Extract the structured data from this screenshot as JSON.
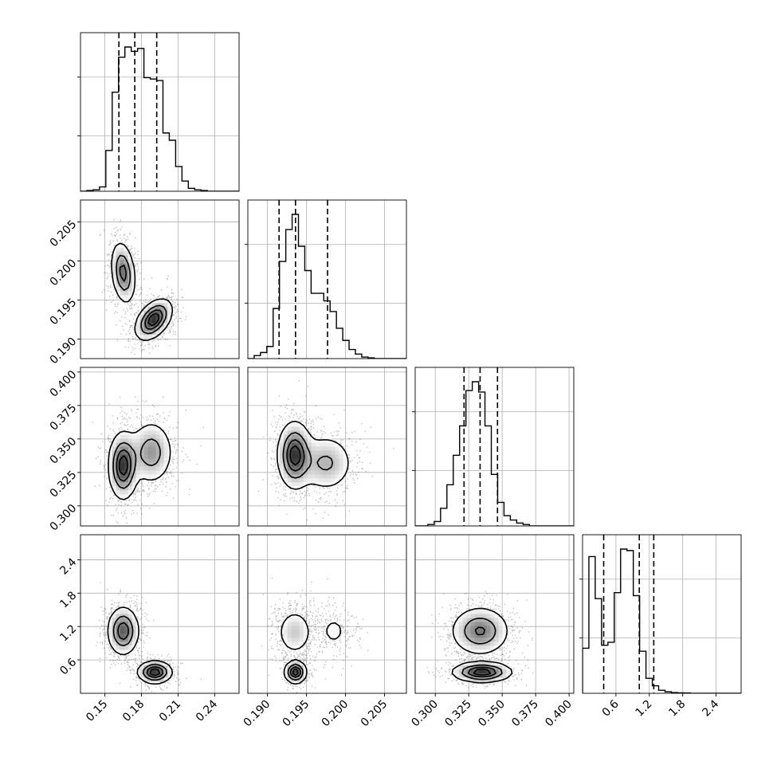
{
  "chart_data": {
    "type": "corner",
    "parameters": [
      {
        "ticks": [
          0.15,
          0.18,
          0.21,
          0.24
        ],
        "tick_labels": [
          "0.15",
          "0.18",
          "0.21",
          "0.24"
        ],
        "range": [
          0.13,
          0.26
        ]
      },
      {
        "ticks": [
          0.19,
          0.195,
          0.2,
          0.205
        ],
        "tick_labels": [
          "0.190",
          "0.195",
          "0.200",
          "0.205"
        ],
        "range": [
          0.1875,
          0.2078
        ]
      },
      {
        "ticks": [
          0.3,
          0.325,
          0.35,
          0.375,
          0.4
        ],
        "tick_labels": [
          "0.300",
          "0.325",
          "0.350",
          "0.375",
          "0.400"
        ],
        "range": [
          0.285,
          0.4035
        ]
      },
      {
        "ticks": [
          0.6,
          1.2,
          1.8,
          2.4
        ],
        "tick_labels": [
          "0.6",
          "1.2",
          "1.8",
          "2.4"
        ],
        "range": [
          0.0,
          2.85
        ]
      }
    ],
    "quantiles": [
      [
        0.1615,
        0.1745,
        0.1925
      ],
      [
        0.1915,
        0.1936,
        0.1977
      ],
      [
        0.3215,
        0.3335,
        0.3465
      ],
      [
        0.38,
        1.02,
        1.28
      ]
    ],
    "histograms": [
      {
        "edges_start": 0.13,
        "bin_width": 0.0052,
        "heights": [
          0,
          0.5,
          1,
          3,
          28,
          68,
          92,
          99,
          96,
          98,
          78,
          77,
          76,
          40,
          35,
          17,
          7,
          2,
          1,
          0.5,
          0,
          0,
          0,
          0,
          0
        ]
      },
      {
        "edges_start": 0.1875,
        "bin_width": 0.00081,
        "heights": [
          0,
          2,
          4,
          8,
          33,
          64,
          85,
          95,
          74,
          58,
          43,
          43,
          38,
          31,
          20,
          12,
          6,
          3,
          1,
          0.5,
          0,
          0,
          0,
          0,
          0
        ]
      },
      {
        "edges_start": 0.285,
        "bin_width": 0.00474,
        "heights": [
          0,
          0,
          1,
          3,
          12,
          28,
          48,
          68,
          92,
          98,
          91,
          68,
          35,
          16,
          7,
          4,
          2,
          1,
          0,
          0,
          0,
          0,
          0,
          0,
          0
        ]
      },
      {
        "edges_start": 0.0,
        "bin_width": 0.114,
        "heights": [
          30,
          91,
          63,
          32,
          34,
          67,
          96,
          95,
          65,
          28,
          10,
          5,
          2,
          1,
          0.5,
          0.3,
          0.2,
          0,
          0,
          0,
          0,
          0,
          0,
          0,
          0
        ]
      }
    ],
    "modes": [
      [
        {
          "mean": [
            0.165,
            0.1985
          ],
          "sd": [
            0.005,
            0.002
          ],
          "rho": -0.25,
          "weight": 0.45
        },
        {
          "mean": [
            0.19,
            0.1925
          ],
          "sd": [
            0.0075,
            0.0013
          ],
          "rho": 0.45,
          "weight": 0.55
        }
      ],
      [
        {
          "mean": [
            0.165,
            0.33
          ],
          "sd": [
            0.006,
            0.0125
          ],
          "rho": 0.0,
          "weight": 0.55
        },
        {
          "mean": [
            0.188,
            0.34
          ],
          "sd": [
            0.009,
            0.012
          ],
          "rho": 0.0,
          "weight": 0.45
        }
      ],
      [
        {
          "mean": [
            0.1935,
            0.338
          ],
          "sd": [
            0.0011,
            0.0125
          ],
          "rho": 0.0,
          "weight": 0.6
        },
        {
          "mean": [
            0.1975,
            0.332
          ],
          "sd": [
            0.0018,
            0.011
          ],
          "rho": 0.0,
          "weight": 0.4
        }
      ],
      [
        {
          "mean": [
            0.165,
            1.12
          ],
          "sd": [
            0.0065,
            0.22
          ],
          "rho": 0.0,
          "weight": 0.62
        },
        {
          "mean": [
            0.191,
            0.38
          ],
          "sd": [
            0.007,
            0.1
          ],
          "rho": 0.0,
          "weight": 0.38
        }
      ],
      [
        {
          "mean": [
            0.1935,
            1.1
          ],
          "sd": [
            0.0012,
            0.22
          ],
          "rho": 0.0,
          "weight": 0.45
        },
        {
          "mean": [
            0.1985,
            1.12
          ],
          "sd": [
            0.0012,
            0.2
          ],
          "rho": 0.0,
          "weight": 0.2
        },
        {
          "mean": [
            0.1936,
            0.38
          ],
          "sd": [
            0.0007,
            0.1
          ],
          "rho": 0.0,
          "weight": 0.35
        }
      ],
      [
        {
          "mean": [
            0.3335,
            1.12
          ],
          "sd": [
            0.011,
            0.22
          ],
          "rho": 0.0,
          "weight": 0.62
        },
        {
          "mean": [
            0.335,
            0.38
          ],
          "sd": [
            0.011,
            0.09
          ],
          "rho": 0.0,
          "weight": 0.38
        }
      ]
    ],
    "grid": true
  }
}
